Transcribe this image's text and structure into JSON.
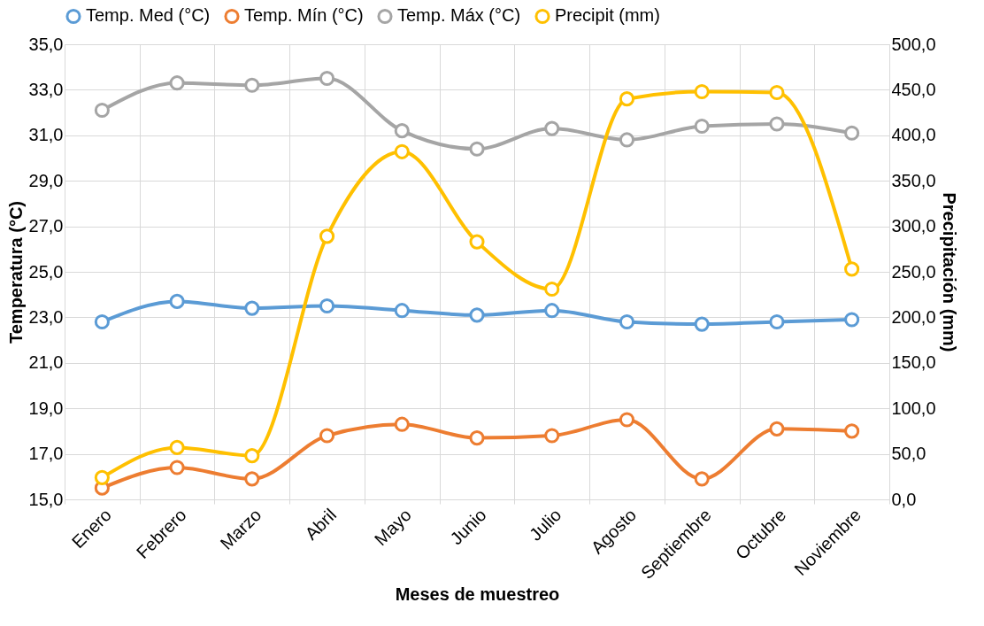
{
  "chart_data": {
    "type": "line",
    "xlabel": "Meses de muestreo",
    "ylabel": "Temperatura (°C)",
    "y2label": "Precipitación (mm)",
    "categories": [
      "Enero",
      "Febrero",
      "Marzo",
      "Abril",
      "Mayo",
      "Junio",
      "Julio",
      "Agosto",
      "Septiembre",
      "Octubre",
      "Noviembre"
    ],
    "series": [
      {
        "name": "Temp. Med (°C)",
        "color": "#5b9bd5",
        "values": [
          22.8,
          23.7,
          23.4,
          23.5,
          23.3,
          23.1,
          23.3,
          22.8,
          22.7,
          22.8,
          22.9
        ]
      },
      {
        "name": "Temp. Mín (°C)",
        "color": "#ed7d31",
        "values": [
          15.5,
          16.4,
          15.9,
          17.8,
          18.3,
          17.7,
          17.8,
          18.5,
          15.9,
          18.1,
          18.0
        ]
      },
      {
        "name": "Temp. Máx (°C)",
        "color": "#a5a5a5",
        "values": [
          32.1,
          33.3,
          33.2,
          33.5,
          31.2,
          30.4,
          31.3,
          30.8,
          31.4,
          31.5,
          31.1
        ]
      },
      {
        "name": "Precipit (mm)",
        "color": "#ffc000",
        "axis": "y2",
        "values": [
          24,
          57,
          48,
          289,
          382,
          283,
          231,
          440,
          448,
          447,
          253
        ]
      }
    ],
    "ylim": [
      15,
      35
    ],
    "yticks": [
      {
        "value": 15,
        "label": "15,0"
      },
      {
        "value": 17,
        "label": "17,0"
      },
      {
        "value": 19,
        "label": "19,0"
      },
      {
        "value": 21,
        "label": "21,0"
      },
      {
        "value": 23,
        "label": "23,0"
      },
      {
        "value": 25,
        "label": "25,0"
      },
      {
        "value": 27,
        "label": "27,0"
      },
      {
        "value": 29,
        "label": "29,0"
      },
      {
        "value": 31,
        "label": "31,0"
      },
      {
        "value": 33,
        "label": "33,0"
      },
      {
        "value": 35,
        "label": "35,0"
      }
    ],
    "y2lim": [
      0,
      500
    ],
    "y2ticks": [
      {
        "value": 0,
        "label": "0,0"
      },
      {
        "value": 50,
        "label": "50,0"
      },
      {
        "value": 100,
        "label": "100,0"
      },
      {
        "value": 150,
        "label": "150,0"
      },
      {
        "value": 200,
        "label": "200,0"
      },
      {
        "value": 250,
        "label": "250,0"
      },
      {
        "value": 300,
        "label": "300,0"
      },
      {
        "value": 350,
        "label": "350,0"
      },
      {
        "value": 400,
        "label": "400,0"
      },
      {
        "value": 450,
        "label": "450,0"
      },
      {
        "value": 500,
        "label": "500,0"
      }
    ],
    "grid": true,
    "legend": "top",
    "marker": "circle",
    "line_style": "solid"
  }
}
